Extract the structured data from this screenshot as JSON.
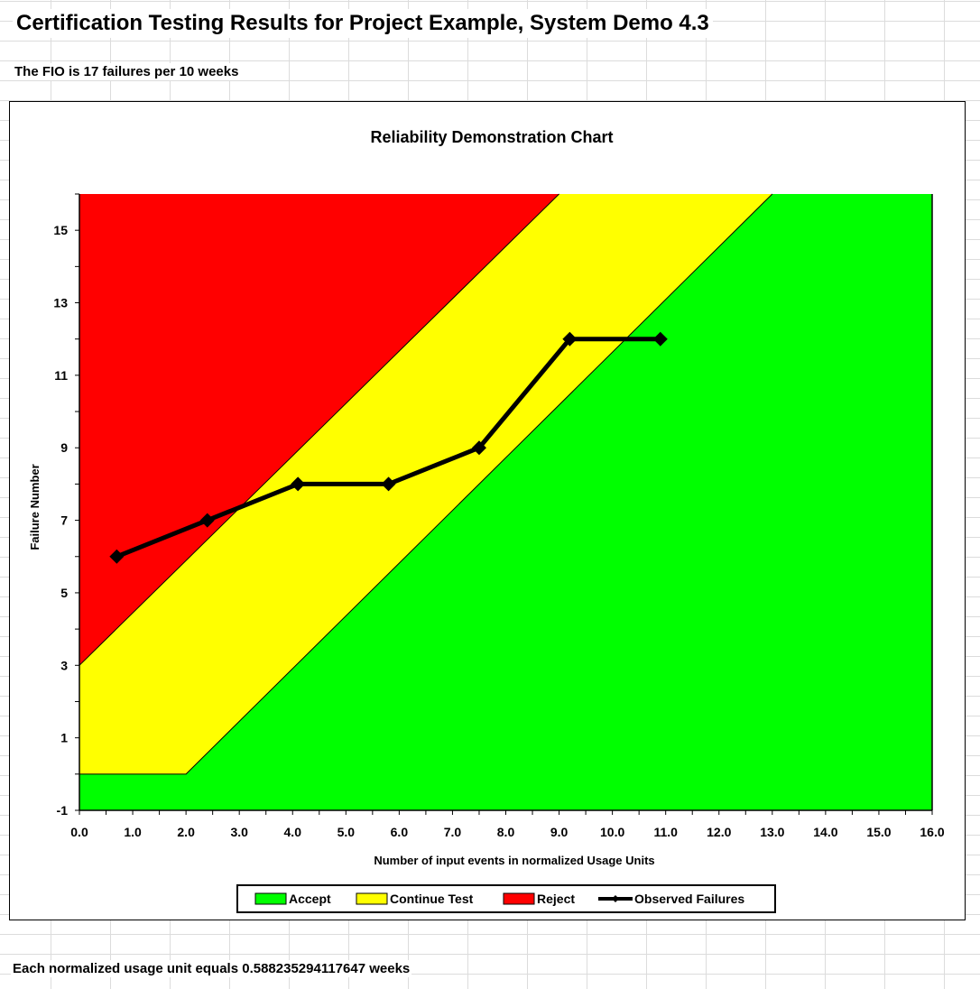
{
  "page": {
    "heading": "Certification Testing Results for Project Example, System Demo 4.3",
    "fio_note": "The FIO is 17 failures per 10 weeks",
    "footer_note": "Each normalized usage unit equals 0.588235294117647 weeks"
  },
  "chart_data": {
    "type": "area",
    "title": "Reliability Demonstration Chart",
    "xlabel": "Number of input events in normalized Usage Units",
    "ylabel": "Failure Number",
    "xlim": [
      0,
      16
    ],
    "ylim": [
      -1,
      16
    ],
    "x_ticks": [
      "0.0",
      "1.0",
      "2.0",
      "3.0",
      "4.0",
      "5.0",
      "6.0",
      "7.0",
      "8.0",
      "9.0",
      "10.0",
      "11.0",
      "12.0",
      "13.0",
      "14.0",
      "15.0",
      "16.0"
    ],
    "y_ticks": [
      "-1",
      "1",
      "3",
      "5",
      "7",
      "9",
      "11",
      "13",
      "15"
    ],
    "grid": false,
    "regions": [
      {
        "name": "Accept",
        "color": "#00ff00"
      },
      {
        "name": "Continue Test",
        "color": "#ffff00"
      },
      {
        "name": "Reject",
        "color": "#ff0000"
      }
    ],
    "boundaries": {
      "reject_line": [
        [
          0,
          3
        ],
        [
          9.0,
          16
        ]
      ],
      "accept_line": [
        [
          0,
          0
        ],
        [
          2.0,
          0
        ],
        [
          13.0,
          16
        ]
      ]
    },
    "series": [
      {
        "name": "Observed Failures",
        "color": "#000000",
        "x": [
          0.7,
          2.4,
          4.1,
          5.8,
          7.5,
          9.2,
          10.9
        ],
        "y": [
          6,
          7,
          8,
          8,
          9,
          12,
          12
        ]
      }
    ],
    "legend": {
      "position": "bottom",
      "items": [
        {
          "label": "Accept",
          "color": "#00ff00",
          "kind": "box"
        },
        {
          "label": "Continue Test",
          "color": "#ffff00",
          "kind": "box"
        },
        {
          "label": "Reject",
          "color": "#ff0000",
          "kind": "box"
        },
        {
          "label": "Observed Failures",
          "color": "#000000",
          "kind": "line"
        }
      ]
    }
  }
}
